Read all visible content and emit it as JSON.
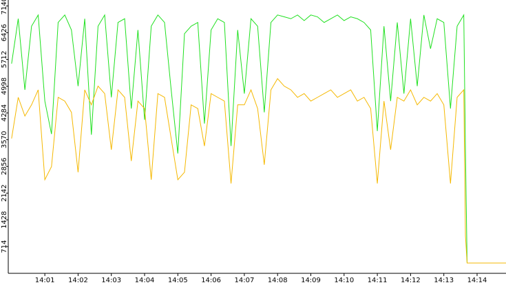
{
  "chart_data": {
    "type": "line",
    "x": [
      840,
      840.2,
      840.4,
      840.6,
      840.8,
      841,
      841.2,
      841.4,
      841.6,
      841.8,
      842,
      842.2,
      842.4,
      842.6,
      842.8,
      843,
      843.2,
      843.4,
      843.6,
      843.8,
      844,
      844.2,
      844.4,
      844.6,
      844.8,
      845,
      845.2,
      845.4,
      845.6,
      845.8,
      846,
      846.2,
      846.4,
      846.6,
      846.8,
      847,
      847.2,
      847.4,
      847.6,
      847.8,
      848,
      848.2,
      848.4,
      848.6,
      848.8,
      849,
      849.2,
      849.4,
      849.6,
      849.8,
      850,
      850.2,
      850.4,
      850.6,
      850.8,
      851,
      851.2,
      851.4,
      851.6,
      851.8,
      852,
      852.2,
      852.4,
      852.6,
      852.8,
      853,
      853.2,
      853.4,
      853.6,
      853.65,
      853.7,
      854.87
    ],
    "series": [
      {
        "color": "#1ee01e",
        "values": [
          5600,
          6800,
          4900,
          6600,
          6900,
          4600,
          3720,
          6700,
          6900,
          6500,
          5000,
          6800,
          3700,
          6600,
          6900,
          4700,
          6700,
          6800,
          4400,
          6500,
          4100,
          6600,
          6900,
          6700,
          4900,
          3200,
          6400,
          6600,
          6700,
          4000,
          6500,
          6800,
          6700,
          3400,
          6500,
          4800,
          6800,
          6600,
          4300,
          6700,
          6900,
          6850,
          6800,
          6900,
          6750,
          6900,
          6850,
          6700,
          6800,
          6900,
          6750,
          6850,
          6800,
          6700,
          6500,
          3800,
          6600,
          4600,
          6700,
          4800,
          6800,
          5000,
          6900,
          6000,
          6800,
          6700,
          4400,
          6600,
          6900,
          3300,
          275,
          275
        ]
      },
      {
        "color": "#f5b800",
        "values": [
          3600,
          4700,
          4200,
          4500,
          4900,
          2500,
          2850,
          4700,
          4600,
          4300,
          2700,
          4900,
          4500,
          5000,
          4800,
          3300,
          4900,
          4700,
          3000,
          4600,
          4400,
          2500,
          4800,
          4700,
          3600,
          2500,
          2700,
          4500,
          4400,
          3400,
          4800,
          4700,
          4600,
          2400,
          4500,
          4500,
          4900,
          4400,
          2900,
          4900,
          5200,
          5000,
          4900,
          4700,
          4800,
          4600,
          4700,
          4800,
          4900,
          4700,
          4800,
          4900,
          4600,
          4700,
          4400,
          2400,
          4600,
          3300,
          4700,
          4600,
          4900,
          4500,
          4700,
          4600,
          4800,
          4500,
          2400,
          4700,
          4900,
          1000,
          275,
          275
        ]
      }
    ],
    "xlim": [
      839.9,
      854.87
    ],
    "xticks": [
      {
        "value": 841,
        "label": "14:01"
      },
      {
        "value": 842,
        "label": "14:02"
      },
      {
        "value": 843,
        "label": "14:03"
      },
      {
        "value": 844,
        "label": "14:04"
      },
      {
        "value": 845,
        "label": "14:05"
      },
      {
        "value": 846,
        "label": "14:06"
      },
      {
        "value": 847,
        "label": "14:07"
      },
      {
        "value": 848,
        "label": "14:08"
      },
      {
        "value": 849,
        "label": "14:09"
      },
      {
        "value": 850,
        "label": "14:10"
      },
      {
        "value": 851,
        "label": "14:11"
      },
      {
        "value": 852,
        "label": "14:12"
      },
      {
        "value": 853,
        "label": "14:13"
      },
      {
        "value": 854,
        "label": "14:14"
      }
    ],
    "ylim": [
      0,
      7300
    ],
    "yticks": [
      714,
      1428,
      2142,
      2856,
      3570,
      4284,
      4998,
      5712,
      6426,
      7140
    ],
    "grid": false
  }
}
